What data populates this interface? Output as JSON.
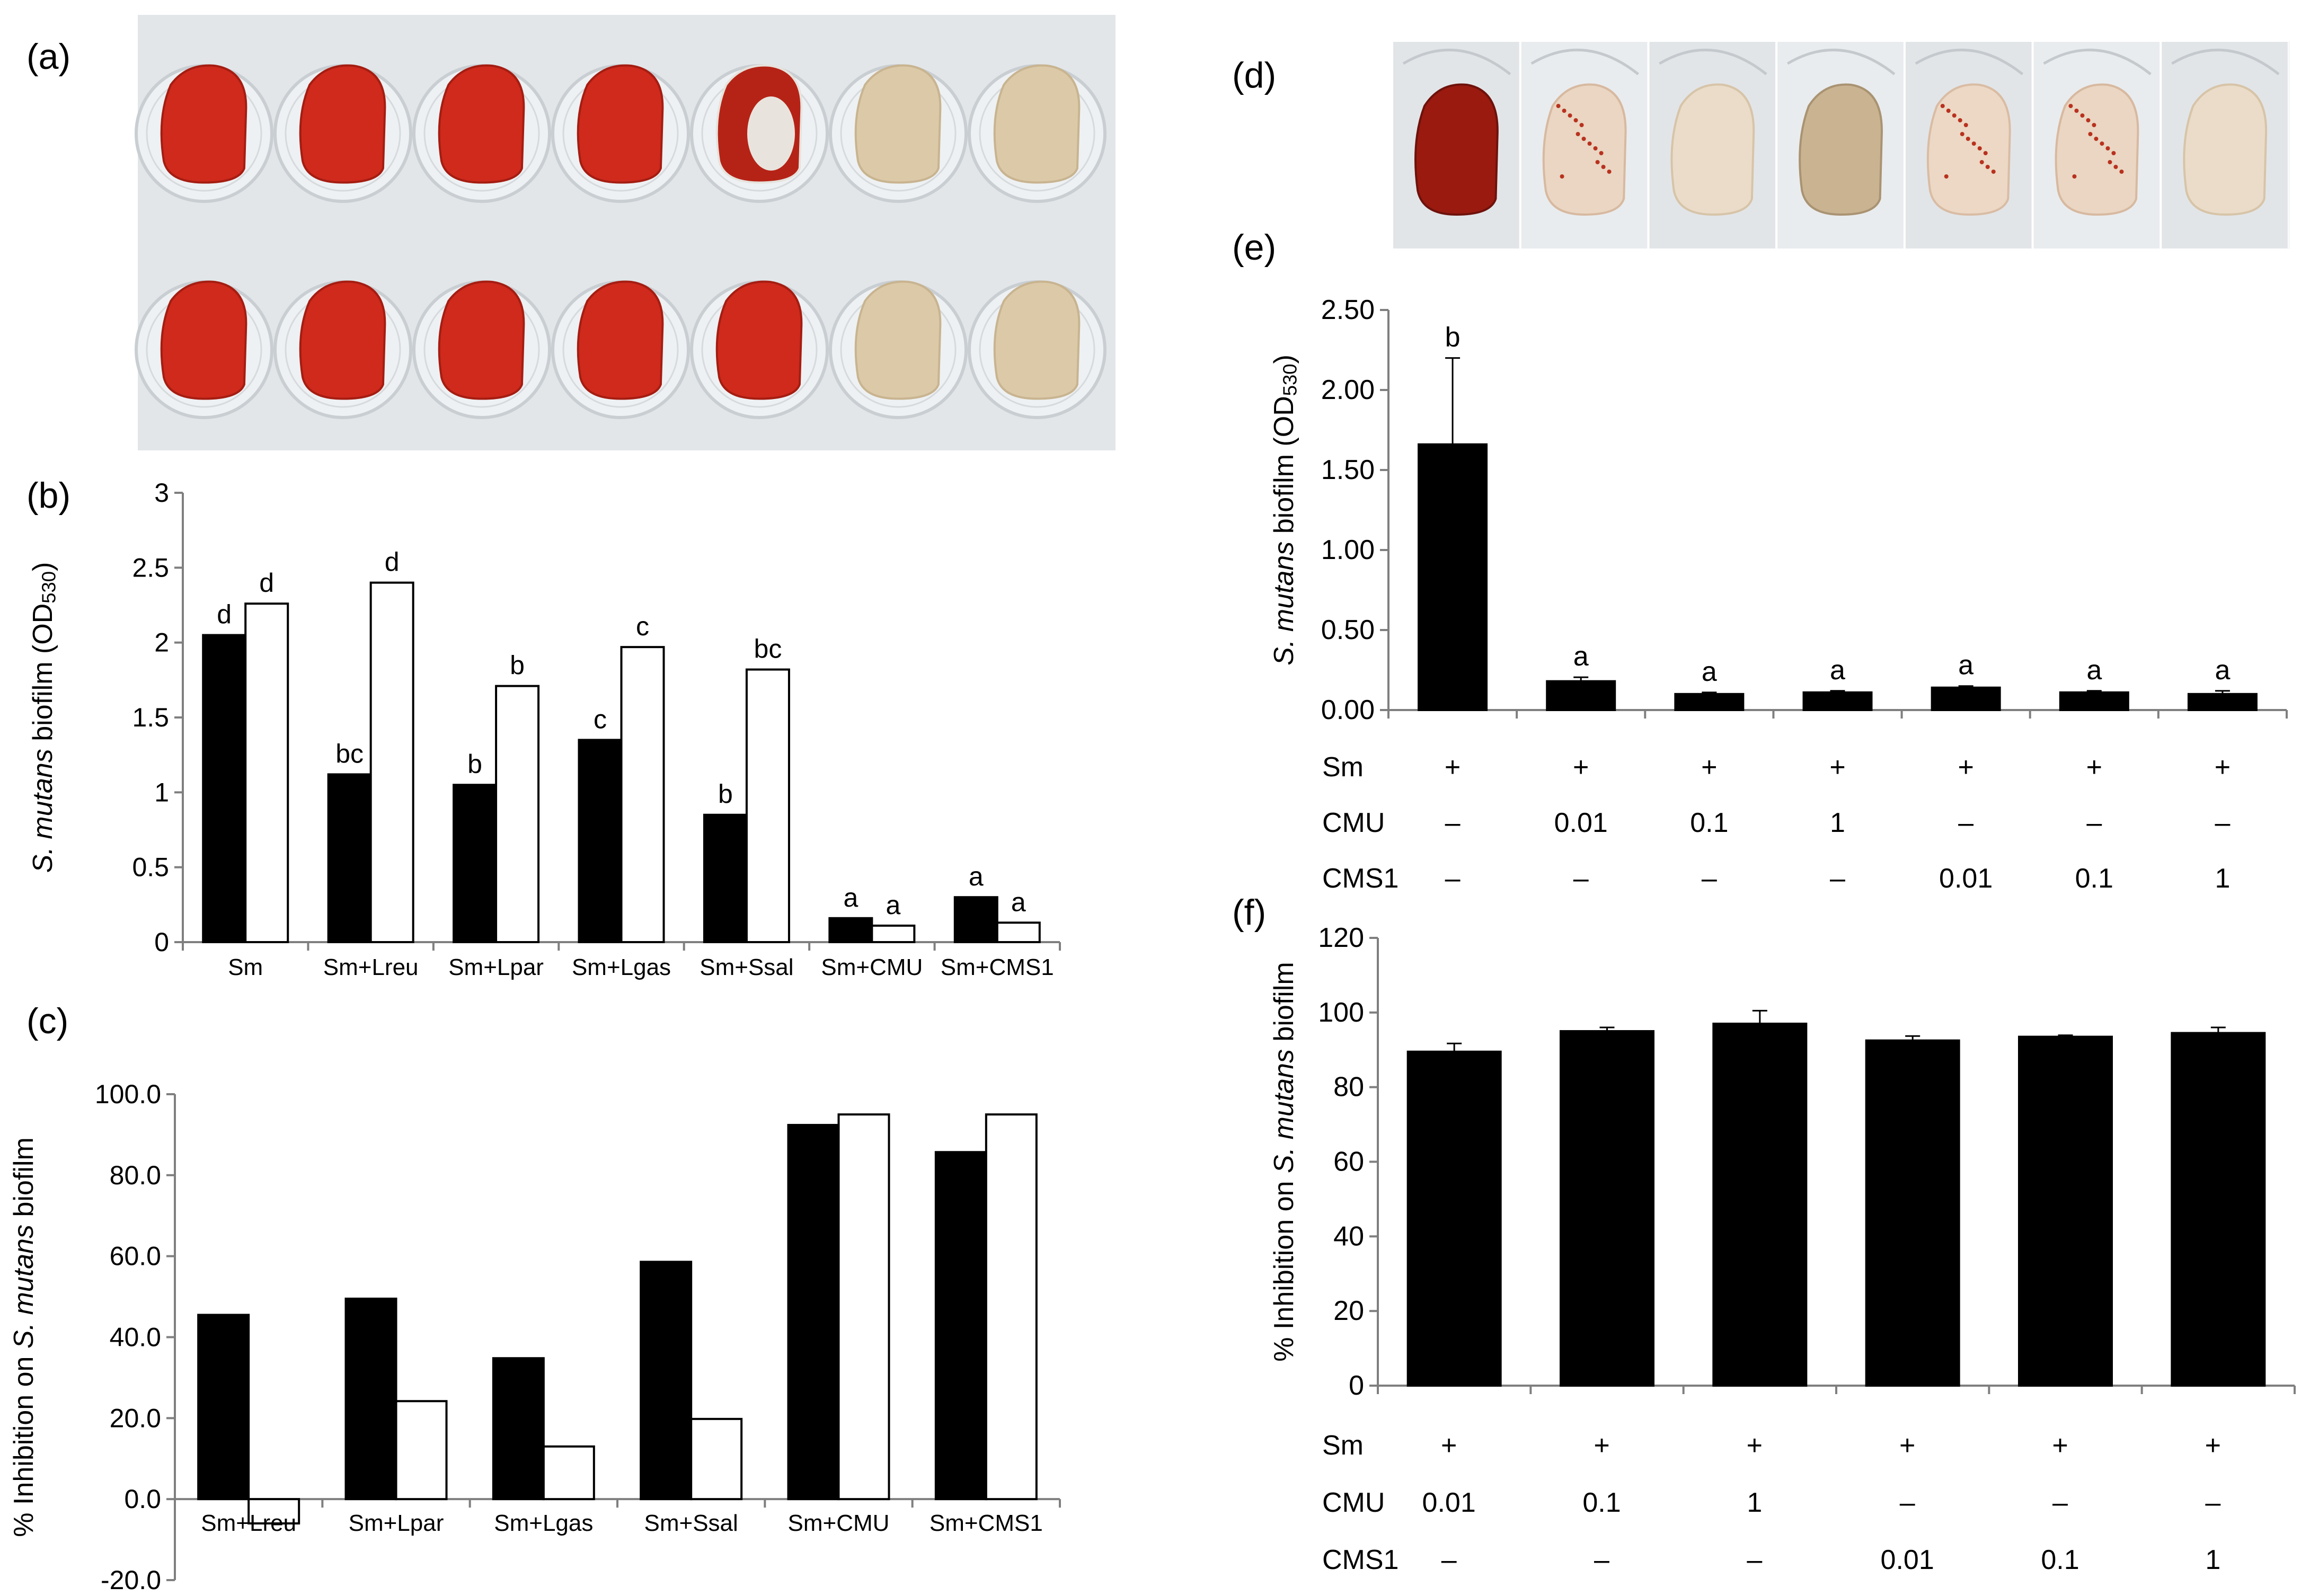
{
  "panel_labels": {
    "a": "(a)",
    "b": "(b)",
    "c": "(c)",
    "d": "(d)",
    "e": "(e)",
    "f": "(f)"
  },
  "colors": {
    "black_bar": "#000000",
    "white_bar": "#ffffff",
    "axis": "#7f7f7f",
    "tooth_red": "#c0281c",
    "tooth_dark_red": "#8e1a12",
    "tooth_beige": "#d8c6a6",
    "plate": "#dfe3e6"
  },
  "photos": {
    "a": {
      "rows": [
        [
          "red",
          "red",
          "red",
          "red",
          "partial",
          "beige",
          "beige"
        ],
        [
          "red",
          "red",
          "red",
          "red",
          "red",
          "beige",
          "beige"
        ]
      ]
    },
    "d": {
      "teeth": [
        "dark_red",
        "light_speckled",
        "light",
        "tan",
        "speckled",
        "light_speckled",
        "light"
      ]
    }
  },
  "chart_data": [
    {
      "id": "b",
      "type": "bar",
      "categories": [
        "Sm",
        "Sm+Lreu",
        "Sm+Lpar",
        "Sm+Lgas",
        "Sm+Ssal",
        "Sm+CMU",
        "Sm+CMS1"
      ],
      "series": [
        {
          "name": "black",
          "values": [
            2.05,
            1.12,
            1.05,
            1.35,
            0.85,
            0.16,
            0.3
          ],
          "labels": [
            "d",
            "bc",
            "b",
            "c",
            "b",
            "a",
            "a"
          ]
        },
        {
          "name": "white",
          "values": [
            2.26,
            2.4,
            1.71,
            1.97,
            1.82,
            0.11,
            0.13
          ],
          "labels": [
            "d",
            "d",
            "b",
            "c",
            "bc",
            "a",
            "a"
          ]
        }
      ],
      "ylim": [
        0,
        3
      ],
      "yticks": [
        "0",
        "0.5",
        "1",
        "1.5",
        "2",
        "2.5",
        "3"
      ],
      "ylabel_parts": {
        "italic": "S. mutans",
        "text": " biofilm (OD",
        "sub": "530",
        "end": ")"
      }
    },
    {
      "id": "c",
      "type": "bar",
      "categories": [
        "Sm+Lreu",
        "Sm+Lpar",
        "Sm+Lgas",
        "Sm+Ssal",
        "Sm+CMU",
        "Sm+CMS1"
      ],
      "series": [
        {
          "name": "black",
          "values": [
            45.5,
            49.5,
            34.8,
            58.6,
            92.4,
            85.7
          ]
        },
        {
          "name": "white",
          "values": [
            -6.0,
            24.2,
            13.0,
            19.8,
            95.0,
            95.0
          ]
        }
      ],
      "ylim": [
        -20,
        100
      ],
      "yticks": [
        "-20.0",
        "0.0",
        "20.0",
        "40.0",
        "60.0",
        "80.0",
        "100.0"
      ],
      "ylabel_parts": {
        "text": "% Inhibition on ",
        "italic": "S. mutans",
        "end": " biofilm"
      }
    },
    {
      "id": "e",
      "type": "bar",
      "series": [
        {
          "name": "black",
          "values": [
            1.66,
            0.18,
            0.1,
            0.11,
            0.14,
            0.11,
            0.1
          ],
          "errors": [
            0.54,
            0.025,
            0.01,
            0.01,
            0.01,
            0.01,
            0.02
          ],
          "labels": [
            "b",
            "a",
            "a",
            "a",
            "a",
            "a",
            "a"
          ]
        }
      ],
      "ylim": [
        0,
        2.5
      ],
      "yticks": [
        "0.00",
        "0.50",
        "1.00",
        "1.50",
        "2.00",
        "2.50"
      ],
      "ylabel_parts": {
        "italic": "S. mutans",
        "text": " biofilm (OD",
        "sub": "530",
        "end": ")"
      },
      "row_table": [
        {
          "label": "Sm",
          "values": [
            "+",
            "+",
            "+",
            "+",
            "+",
            "+",
            "+"
          ]
        },
        {
          "label": "CMU",
          "values": [
            "–",
            "0.01",
            "0.1",
            "1",
            "–",
            "–",
            "–"
          ]
        },
        {
          "label": "CMS1",
          "values": [
            "–",
            "–",
            "–",
            "–",
            "0.01",
            "0.1",
            "1"
          ]
        }
      ]
    },
    {
      "id": "f",
      "type": "bar",
      "series": [
        {
          "name": "black",
          "values": [
            89.5,
            95.0,
            97.0,
            92.5,
            93.5,
            94.5
          ],
          "errors": [
            2.2,
            1.0,
            3.5,
            1.2,
            0.4,
            1.5
          ]
        }
      ],
      "ylim": [
        0,
        120
      ],
      "yticks": [
        "0",
        "20",
        "40",
        "60",
        "80",
        "100",
        "120"
      ],
      "ylabel_parts": {
        "text": "% Inhibition on ",
        "italic": "S. mutans",
        "end": " biofilm"
      },
      "row_table": [
        {
          "label": "Sm",
          "values": [
            "+",
            "+",
            "+",
            "+",
            "+",
            "+"
          ]
        },
        {
          "label": "CMU",
          "values": [
            "0.01",
            "0.1",
            "1",
            "–",
            "–",
            "–"
          ]
        },
        {
          "label": "CMS1",
          "values": [
            "–",
            "–",
            "–",
            "0.01",
            "0.1",
            "1"
          ]
        }
      ]
    }
  ]
}
